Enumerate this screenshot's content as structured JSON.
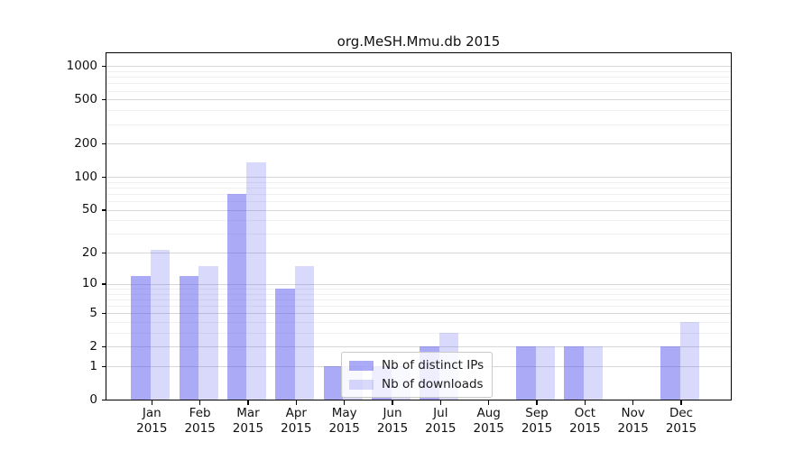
{
  "title": "org.MeSH.Mmu.db 2015",
  "chart_data": {
    "type": "bar",
    "title": "org.MeSH.Mmu.db 2015",
    "y_scale": "log1p",
    "ylim": [
      0,
      1000
    ],
    "y_ticks": [
      0,
      1,
      2,
      5,
      10,
      20,
      50,
      100,
      200,
      500,
      1000
    ],
    "y_minor_gridlines": [
      3,
      4,
      6,
      7,
      8,
      9,
      30,
      40,
      60,
      70,
      80,
      90,
      300,
      400,
      600,
      700,
      800,
      900
    ],
    "grid": "horizontal",
    "categories": [
      "Jan",
      "Feb",
      "Mar",
      "Apr",
      "May",
      "Jun",
      "Jul",
      "Aug",
      "Sep",
      "Oct",
      "Nov",
      "Dec"
    ],
    "x_tick_year": "2015",
    "series": [
      {
        "name": "Nb of distinct IPs",
        "base_color": "#5555f0",
        "alpha": 0.5,
        "color_hex_on_white": "#aaaaf7",
        "values": [
          12,
          12,
          70,
          9,
          1,
          1,
          2,
          0,
          2,
          2,
          0,
          2
        ]
      },
      {
        "name": "Nb of downloads",
        "base_color": "#5555f0",
        "alpha": 0.225,
        "color_hex_on_white": "#d9d9f8",
        "values": [
          21,
          15,
          135,
          15,
          1,
          1,
          3,
          0,
          2,
          2,
          0,
          4
        ]
      }
    ],
    "legend_position": "inside lower-center-left"
  }
}
